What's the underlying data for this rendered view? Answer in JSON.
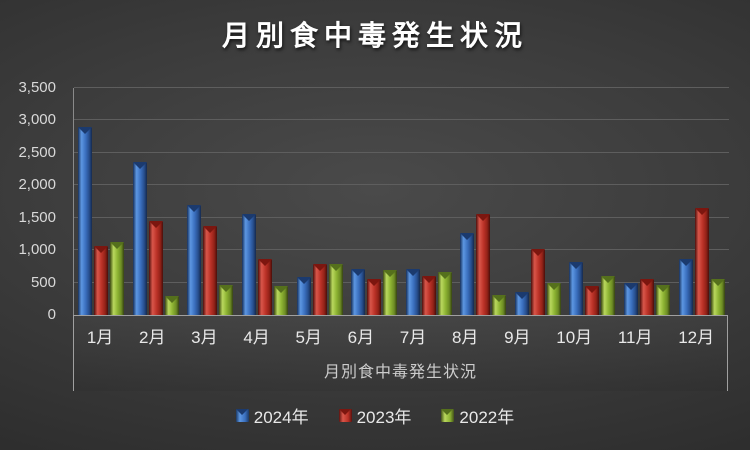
{
  "title": "月別食中毒発生状況",
  "chart_data": {
    "type": "bar",
    "title": "月別食中毒発生状況",
    "x_axis_title": "月別食中毒発生状況",
    "categories": [
      "1月",
      "2月",
      "3月",
      "4月",
      "5月",
      "6月",
      "7月",
      "8月",
      "9月",
      "10月",
      "11月",
      "12月"
    ],
    "series": [
      {
        "name": "2024年",
        "color": "#3a6fbe",
        "values": [
          2900,
          2360,
          1700,
          1550,
          590,
          710,
          710,
          1270,
          360,
          810,
          490,
          860
        ]
      },
      {
        "name": "2023年",
        "color": "#bb3227",
        "values": [
          1070,
          1450,
          1370,
          860,
          780,
          550,
          600,
          1550,
          1020,
          450,
          550,
          1650
        ]
      },
      {
        "name": "2022年",
        "color": "#8cb232",
        "values": [
          1120,
          290,
          460,
          450,
          790,
          700,
          660,
          310,
          500,
          600,
          460,
          550
        ]
      }
    ],
    "ylim": [
      0,
      3500
    ],
    "y_tick_step": 500,
    "y_tick_labels": [
      "0",
      "500",
      "1,000",
      "1,500",
      "2,000",
      "2,500",
      "3,000",
      "3,500"
    ],
    "grid": true,
    "legend_position": "bottom",
    "background": "#3c3c3c",
    "gridline_color": "#5e5e5e"
  }
}
